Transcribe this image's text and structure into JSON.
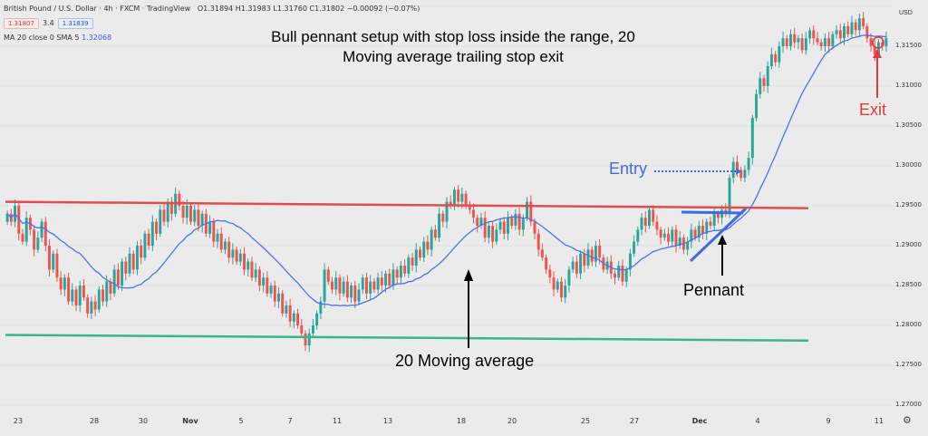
{
  "header": {
    "symbol": "British Pound / U.S. Dollar · 4h · FXCM · TradingView",
    "ohlc": "O1.31894 H1.31983 L1.31760 C1.31802 −0.00092 (−0.07%)",
    "price_badge_1": "1.31807",
    "spread": "3.4",
    "price_badge_2": "1.31839",
    "ma_label": "MA 20 close 0 SMA 5",
    "ma_value": "1.32068"
  },
  "title_line_1": "Bull pennant setup with stop loss inside the range, 20",
  "title_line_2": "Moving average trailing stop exit",
  "annotations": {
    "entry": "Entry",
    "exit": "Exit",
    "pennant": "Pennant",
    "moving_average": "20 Moving average"
  },
  "axis": {
    "currency": "USD",
    "y_ticks": [
      "1.31500",
      "1.31000",
      "1.30500",
      "1.30000",
      "1.29500",
      "1.29000",
      "1.28500",
      "1.28000",
      "1.27500",
      "1.27000"
    ],
    "x_ticks": [
      "23",
      "28",
      "30",
      "Nov",
      "5",
      "7",
      "11",
      "13",
      "18",
      "20",
      "25",
      "27",
      "Dec",
      "4",
      "9",
      "11"
    ],
    "x_bold": [
      "Nov",
      "Dec"
    ]
  },
  "colors": {
    "up": "#27a69a",
    "down": "#ef5350",
    "ma": "#4a72e8",
    "resistance": "#e04d4d",
    "support": "#3ab58a",
    "entry": "#3f6be0",
    "exit": "#e03b3b"
  },
  "chart_data": {
    "type": "candlestick",
    "y_range": [
      1.27,
      1.32
    ],
    "resistance_level": 1.2955,
    "support_level": 1.2788,
    "closes": [
      1.294,
      1.293,
      1.295,
      1.2915,
      1.2905,
      1.2935,
      1.292,
      1.2895,
      1.291,
      1.293,
      1.29,
      1.287,
      1.289,
      1.286,
      1.2845,
      1.286,
      1.283,
      1.2845,
      1.2825,
      1.285,
      1.2835,
      1.2815,
      1.283,
      1.282,
      1.2845,
      1.283,
      1.2855,
      1.284,
      1.287,
      1.285,
      1.288,
      1.2865,
      1.289,
      1.287,
      1.29,
      1.2885,
      1.2915,
      1.29,
      1.293,
      1.2915,
      1.2945,
      1.293,
      1.2955,
      1.294,
      1.2965,
      1.295,
      1.2935,
      1.295,
      1.293,
      1.2945,
      1.2925,
      1.294,
      1.2915,
      1.293,
      1.2905,
      1.2915,
      1.2895,
      1.2905,
      1.2885,
      1.2895,
      1.288,
      1.289,
      1.287,
      1.288,
      1.286,
      1.287,
      1.285,
      1.286,
      1.284,
      1.285,
      1.283,
      1.284,
      1.2815,
      1.2825,
      1.2805,
      1.2815,
      1.28,
      1.279,
      1.2775,
      1.279,
      1.28,
      1.2815,
      1.283,
      1.287,
      1.2855,
      1.2845,
      1.286,
      1.284,
      1.2855,
      1.2835,
      1.285,
      1.283,
      1.2845,
      1.286,
      1.284,
      1.2855,
      1.2845,
      1.286,
      1.285,
      1.2865,
      1.285,
      1.287,
      1.286,
      1.2875,
      1.2865,
      1.2885,
      1.2875,
      1.2895,
      1.2885,
      1.2905,
      1.2895,
      1.292,
      1.291,
      1.294,
      1.293,
      1.2955,
      1.295,
      1.297,
      1.2955,
      1.2965,
      1.295,
      1.2945,
      1.2935,
      1.2925,
      1.2935,
      1.291,
      1.2925,
      1.2905,
      1.292,
      1.293,
      1.2915,
      1.2935,
      1.2925,
      1.294,
      1.292,
      1.2935,
      1.2955,
      1.293,
      1.2915,
      1.2895,
      1.2885,
      1.287,
      1.286,
      1.2845,
      1.2855,
      1.2835,
      1.285,
      1.287,
      1.288,
      1.2865,
      1.289,
      1.2875,
      1.2895,
      1.288,
      1.29,
      1.2885,
      1.287,
      1.288,
      1.2865,
      1.286,
      1.2875,
      1.2855,
      1.287,
      1.289,
      1.2905,
      1.292,
      1.2935,
      1.2925,
      1.2945,
      1.293,
      1.292,
      1.291,
      1.2915,
      1.2905,
      1.292,
      1.29,
      1.291,
      1.2895,
      1.2905,
      1.292,
      1.291,
      1.2925,
      1.2915,
      1.293,
      1.2925,
      1.294,
      1.2935,
      1.2945,
      1.294,
      1.2985,
      1.3005,
      1.2995,
      1.2985,
      1.2995,
      1.301,
      1.306,
      1.309,
      1.311,
      1.31,
      1.3125,
      1.314,
      1.313,
      1.315,
      1.316,
      1.315,
      1.3165,
      1.3155,
      1.316,
      1.3145,
      1.316,
      1.317,
      1.316,
      1.3155,
      1.315,
      1.316,
      1.315,
      1.3165,
      1.317,
      1.316,
      1.3175,
      1.3165,
      1.318,
      1.317,
      1.3185,
      1.3175,
      1.316,
      1.315,
      1.314,
      1.3155,
      1.315,
      1.316
    ]
  }
}
